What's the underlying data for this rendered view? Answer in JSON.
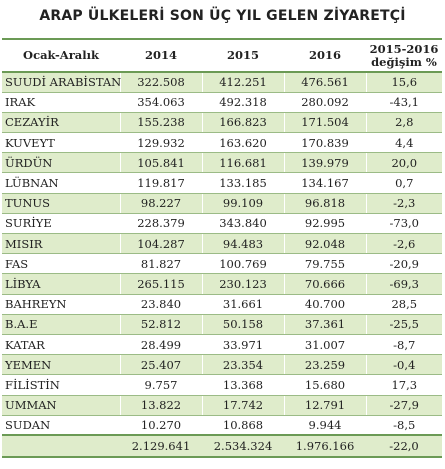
{
  "title": "ARAP ÜLKELERİ SON ÜÇ YIL GELEN ZİYARETÇİ",
  "columns": [
    "Ocak-Aralık",
    "2014",
    "2015",
    "2016",
    "2015-2016 değişim %"
  ],
  "rows": [
    [
      "SUUDİ ARABİSTAN",
      "322.508",
      "412.251",
      "476.561",
      "15,6"
    ],
    [
      "IRAK",
      "354.063",
      "492.318",
      "280.092",
      "-43,1"
    ],
    [
      "CEZAYİR",
      "155.238",
      "166.823",
      "171.504",
      "2,8"
    ],
    [
      "KUVEYT",
      "129.932",
      "163.620",
      "170.839",
      "4,4"
    ],
    [
      "ÜRDÜN",
      "105.841",
      "116.681",
      "139.979",
      "20,0"
    ],
    [
      "LÜBNAN",
      "119.817",
      "133.185",
      "134.167",
      "0,7"
    ],
    [
      "TUNUS",
      "98.227",
      "99.109",
      "96.818",
      "-2,3"
    ],
    [
      "SURİYE",
      "228.379",
      "343.840",
      "92.995",
      "-73,0"
    ],
    [
      "MISIR",
      "104.287",
      "94.483",
      "92.048",
      "-2,6"
    ],
    [
      "FAS",
      "81.827",
      "100.769",
      "79.755",
      "-20,9"
    ],
    [
      "LİBYA",
      "265.115",
      "230.123",
      "70.666",
      "-69,3"
    ],
    [
      "BAHREYN",
      "23.840",
      "31.661",
      "40.700",
      "28,5"
    ],
    [
      "B.A.E",
      "52.812",
      "50.158",
      "37.361",
      "-25,5"
    ],
    [
      "KATAR",
      "28.499",
      "33.971",
      "31.007",
      "-8,7"
    ],
    [
      "YEMEN",
      "25.407",
      "23.354",
      "23.259",
      "-0,4"
    ],
    [
      "FİLİSTİN",
      "9.757",
      "13.368",
      "15.680",
      "17,3"
    ],
    [
      "UMMAN",
      "13.822",
      "17.742",
      "12.791",
      "-27,9"
    ],
    [
      "SUDAN",
      "10.270",
      "10.868",
      "9.944",
      "-8,5"
    ]
  ],
  "totals": [
    "",
    "2.129.641",
    "2.534.324",
    "1.976.166",
    "-22,0"
  ]
}
